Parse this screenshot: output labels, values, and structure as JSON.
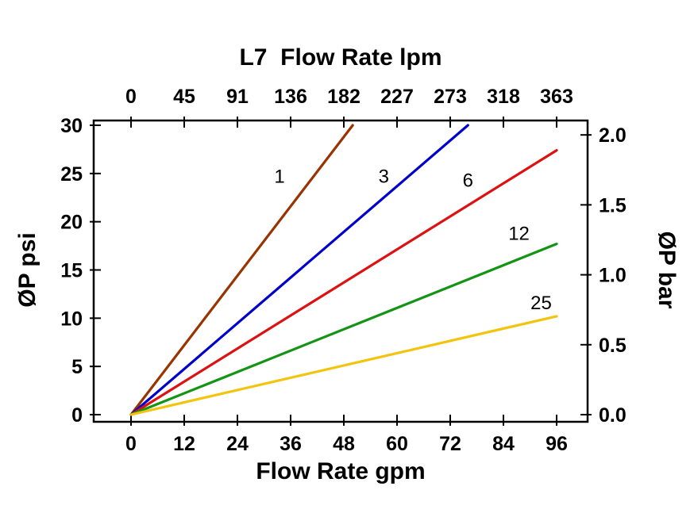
{
  "chart_data": {
    "type": "line",
    "title": "L7  Flow Rate lpm",
    "axes": {
      "top": {
        "label": "L7  Flow Rate lpm",
        "ticks": [
          "0",
          "45",
          "91",
          "136",
          "182",
          "227",
          "273",
          "318",
          "363"
        ],
        "tick_positions_gpm": [
          0,
          12,
          24,
          36,
          48,
          60,
          72,
          84,
          96
        ]
      },
      "bottom": {
        "label": "Flow Rate gpm",
        "ticks": [
          "0",
          "12",
          "24",
          "36",
          "48",
          "60",
          "72",
          "84",
          "96"
        ],
        "tick_values": [
          0,
          12,
          24,
          36,
          48,
          60,
          72,
          84,
          96
        ],
        "range": [
          0,
          96
        ]
      },
      "left": {
        "label": "ØP psi",
        "ticks": [
          "0",
          "5",
          "10",
          "15",
          "20",
          "25",
          "30"
        ],
        "tick_values": [
          0,
          5,
          10,
          15,
          20,
          25,
          30
        ],
        "range": [
          0,
          30
        ]
      },
      "right": {
        "label": "ØP bar",
        "ticks": [
          "0.0",
          "0.5",
          "1.0",
          "1.5",
          "2.0"
        ],
        "tick_values": [
          0,
          0.5,
          1,
          1.5,
          2
        ],
        "psi_per_bar": 14.5
      }
    },
    "grid": "off",
    "legend": "inline-labels",
    "series": [
      {
        "name": "1",
        "color": "#993300",
        "points": [
          [
            0,
            0
          ],
          [
            50,
            30
          ]
        ],
        "label_pos": [
          33.5,
          24.7
        ]
      },
      {
        "name": "3",
        "color": "#0000cc",
        "points": [
          [
            0,
            0
          ],
          [
            76,
            30
          ]
        ],
        "label_pos": [
          57,
          24.7
        ]
      },
      {
        "name": "6",
        "color": "#dd1111",
        "points": [
          [
            0,
            0
          ],
          [
            96,
            27.4
          ]
        ],
        "label_pos": [
          76,
          24.3
        ]
      },
      {
        "name": "12",
        "color": "#149414",
        "points": [
          [
            0,
            0
          ],
          [
            96,
            17.7
          ]
        ],
        "label_pos": [
          87.5,
          18.8
        ]
      },
      {
        "name": "25",
        "color": "#f2c40d",
        "points": [
          [
            0,
            0
          ],
          [
            96,
            10.2
          ]
        ],
        "label_pos": [
          92.5,
          11.6
        ]
      }
    ]
  }
}
